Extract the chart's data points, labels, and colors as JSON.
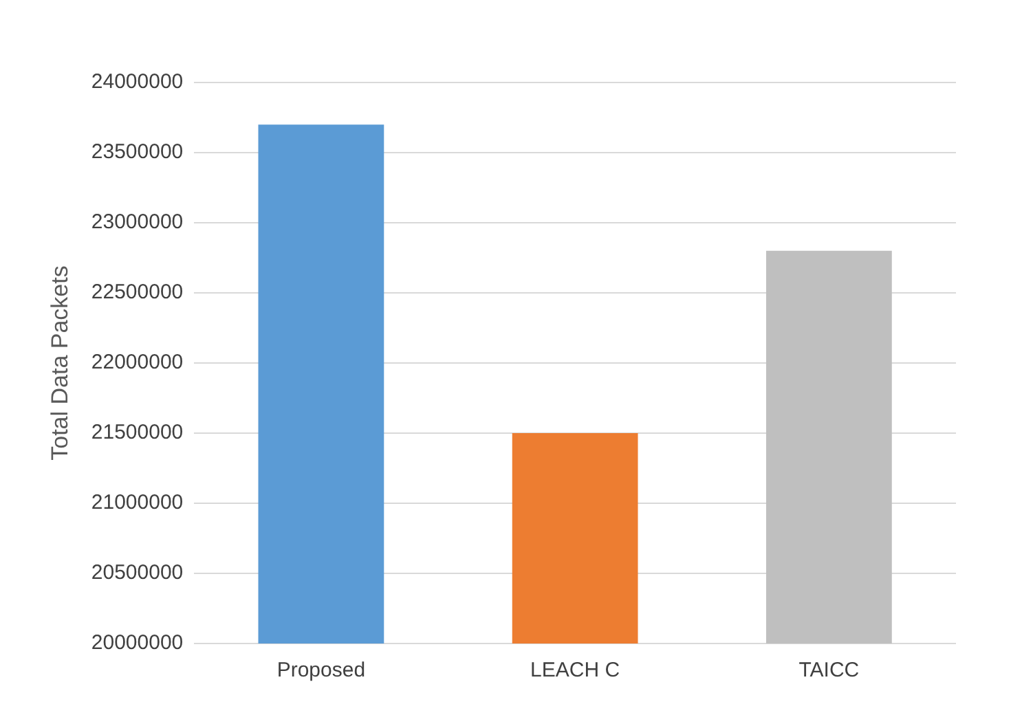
{
  "chart_data": {
    "type": "bar",
    "ylabel": "Total Data Packets",
    "categories": [
      "Proposed",
      "LEACH C",
      "TAICC"
    ],
    "values": [
      23700000,
      21500000,
      22800000
    ],
    "colors": [
      "#5b9bd5",
      "#ed7d31",
      "#bfbfbf"
    ],
    "ylim": [
      20000000,
      24000000
    ],
    "yticks": [
      20000000,
      20500000,
      21000000,
      21500000,
      22000000,
      22500000,
      23000000,
      23500000,
      24000000
    ],
    "grid": "y",
    "legend": false
  }
}
